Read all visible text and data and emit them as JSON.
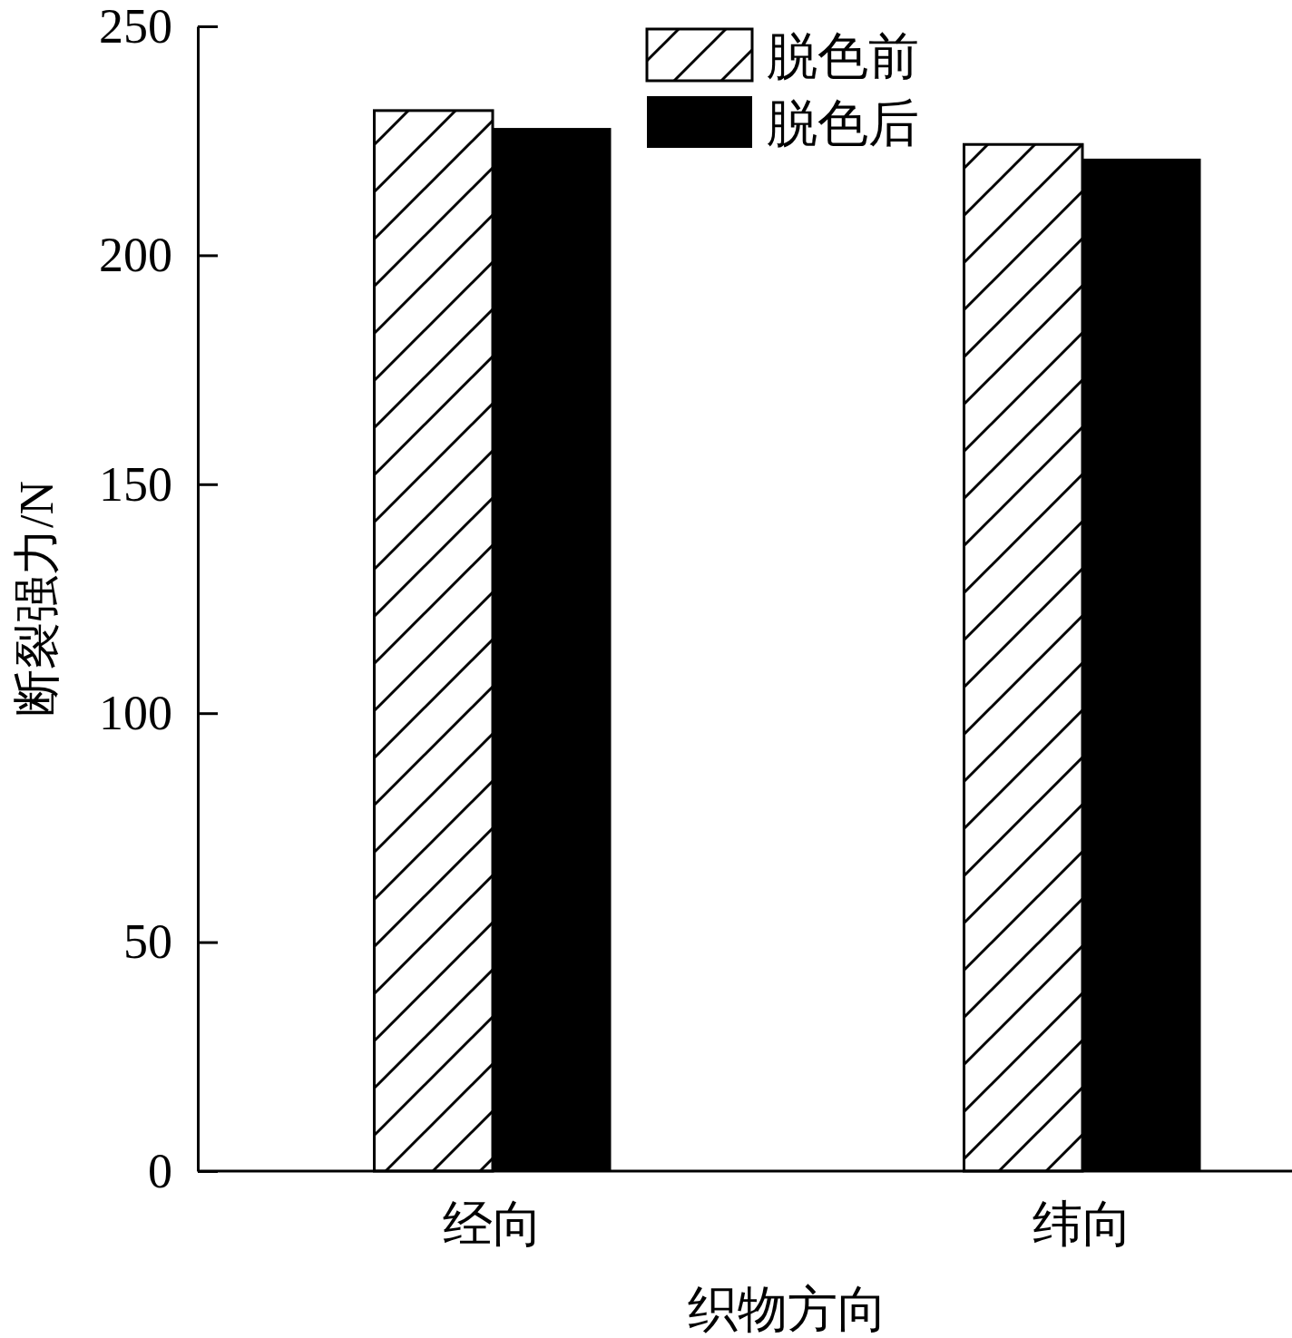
{
  "chart_data": {
    "type": "bar",
    "categories": [
      "经向",
      "纬向"
    ],
    "series": [
      {
        "name": "脱色前",
        "color": "#000000",
        "values": [
          231.6,
          224.2
        ]
      },
      {
        "name": "脱色后",
        "color": "#000000",
        "values": [
          227.8,
          221.1
        ]
      }
    ],
    "xlabel": "织物方向",
    "ylabel": "断裂强力/N",
    "ylim": [
      0,
      250
    ],
    "yticks": [
      0,
      50,
      100,
      150,
      200,
      250
    ],
    "grid": false,
    "legend": "top"
  }
}
